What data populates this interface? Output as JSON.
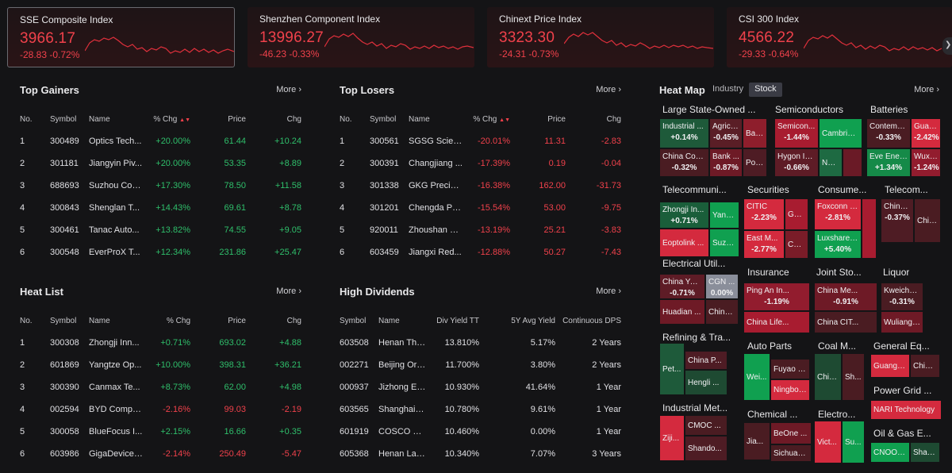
{
  "indices": [
    {
      "name": "SSE Composite Index",
      "price": "3966.17",
      "chg": "-28.83",
      "pct": "-0.72%"
    },
    {
      "name": "Shenzhen Component Index",
      "price": "13996.27",
      "chg": "-46.23",
      "pct": "-0.33%"
    },
    {
      "name": "Chinext Price Index",
      "price": "3323.30",
      "chg": "-24.31",
      "pct": "-0.73%"
    },
    {
      "name": "CSI 300 Index",
      "price": "4566.22",
      "chg": "-29.33",
      "pct": "-0.64%"
    }
  ],
  "more_label": "More",
  "gainers": {
    "title": "Top Gainers",
    "headers": [
      "No.",
      "Symbol",
      "Name",
      "% Chg",
      "Price",
      "Chg"
    ],
    "rows": [
      [
        "1",
        "300489",
        "Optics Tech...",
        "+20.00%",
        "61.44",
        "+10.24"
      ],
      [
        "2",
        "301181",
        "Jiangyin Piv...",
        "+20.00%",
        "53.35",
        "+8.89"
      ],
      [
        "3",
        "688693",
        "Suzhou Con...",
        "+17.30%",
        "78.50",
        "+11.58"
      ],
      [
        "4",
        "300843",
        "Shenglan T...",
        "+14.43%",
        "69.61",
        "+8.78"
      ],
      [
        "5",
        "300461",
        "Tanac Auto...",
        "+13.82%",
        "74.55",
        "+9.05"
      ],
      [
        "6",
        "300548",
        "EverProX T...",
        "+12.34%",
        "231.86",
        "+25.47"
      ]
    ]
  },
  "losers": {
    "title": "Top Losers",
    "headers": [
      "No.",
      "Symbol",
      "Name",
      "% Chg",
      "Price",
      "Chg"
    ],
    "rows": [
      [
        "1",
        "300561",
        "SGSG Scien...",
        "-20.01%",
        "11.31",
        "-2.83"
      ],
      [
        "2",
        "300391",
        "Changjiang ...",
        "-17.39%",
        "0.19",
        "-0.04"
      ],
      [
        "3",
        "301338",
        "GKG Precisi...",
        "-16.38%",
        "162.00",
        "-31.73"
      ],
      [
        "4",
        "301201",
        "Chengda Ph...",
        "-15.54%",
        "53.00",
        "-9.75"
      ],
      [
        "5",
        "920011",
        "Zhoushan C...",
        "-13.19%",
        "25.21",
        "-3.83"
      ],
      [
        "6",
        "603459",
        "Jiangxi Red...",
        "-12.88%",
        "50.27",
        "-7.43"
      ]
    ]
  },
  "heatlist": {
    "title": "Heat List",
    "headers": [
      "No.",
      "Symbol",
      "Name",
      "% Chg",
      "Price",
      "Chg"
    ],
    "rows": [
      [
        "1",
        "300308",
        "Zhongji Inn...",
        "+0.71%",
        "693.02",
        "+4.88"
      ],
      [
        "2",
        "601869",
        "Yangtze Op...",
        "+10.00%",
        "398.31",
        "+36.21"
      ],
      [
        "3",
        "300390",
        "Canmax Te...",
        "+8.73%",
        "62.00",
        "+4.98"
      ],
      [
        "4",
        "002594",
        "BYD Compa...",
        "-2.16%",
        "99.03",
        "-2.19"
      ],
      [
        "5",
        "300058",
        "BlueFocus I...",
        "+2.15%",
        "16.66",
        "+0.35"
      ],
      [
        "6",
        "603986",
        "GigaDevice ...",
        "-2.14%",
        "250.49",
        "-5.47"
      ]
    ]
  },
  "dividends": {
    "title": "High Dividends",
    "headers": [
      "Symbol",
      "Name",
      "Div Yield TT",
      "5Y Avg Yield",
      "Continuous DPS"
    ],
    "rows": [
      [
        "603508",
        "Henan Thin...",
        "13.810%",
        "5.17%",
        "2 Years"
      ],
      [
        "002271",
        "Beijing Orie...",
        "11.700%",
        "3.80%",
        "2 Years"
      ],
      [
        "000937",
        "Jizhong En...",
        "10.930%",
        "41.64%",
        "1 Year"
      ],
      [
        "603565",
        "Shanghai Z...",
        "10.780%",
        "9.61%",
        "1 Year"
      ],
      [
        "601919",
        "COSCO Shi...",
        "10.460%",
        "0.00%",
        "1 Year"
      ],
      [
        "605368",
        "Henan Lant...",
        "10.340%",
        "7.07%",
        "3 Years"
      ]
    ]
  },
  "heatmap": {
    "title": "Heat Map",
    "tabs": [
      "Industry",
      "Stock"
    ],
    "groups": [
      "Large State-Owned ...",
      "Semiconductors",
      "Batteries",
      "Telecommuni...",
      "Securities",
      "Consume...",
      "Telecom...",
      "Electrical Util...",
      "Insurance",
      "Joint Sto...",
      "Liquor",
      "Refining & Tra...",
      "Auto Parts",
      "Coal M...",
      "General Eq...",
      "Power Grid ...",
      "Industrial Met...",
      "Chemical ...",
      "Electro...",
      "Oil & Gas E..."
    ],
    "cells": [
      {
        "n": "Industrial ...",
        "v": "+0.14%",
        "c": "#1e5a3a"
      },
      {
        "n": "Agricu...",
        "v": "-0.45%",
        "c": "#5a1e26"
      },
      {
        "n": "Ban...",
        "v": "",
        "c": "#8e1e2c"
      },
      {
        "n": "China Con...",
        "v": "-0.32%",
        "c": "#4a1c22"
      },
      {
        "n": "Bank ...",
        "v": "-0.87%",
        "c": "#6e1a26"
      },
      {
        "n": "Pos...",
        "v": "",
        "c": "#4e1c24"
      },
      {
        "n": "Semicon...",
        "v": "-1.44%",
        "c": "#a81c30"
      },
      {
        "n": "Cambricon",
        "v": "",
        "c": "#10a050"
      },
      {
        "n": "Hygon Inf...",
        "v": "-0.66%",
        "c": "#5e1c26"
      },
      {
        "n": "NA...",
        "v": "",
        "c": "#1e6a42"
      },
      {
        "n": "",
        "v": "",
        "c": "#6a1a26"
      },
      {
        "n": "Contemp...",
        "v": "-0.33%",
        "c": "#4a1c22"
      },
      {
        "n": "Guan...",
        "v": "-2.42%",
        "c": "#d42a3e"
      },
      {
        "n": "Eve Ener...",
        "v": "+1.34%",
        "c": "#158a48"
      },
      {
        "n": "Wuxi ...",
        "v": "-1.24%",
        "c": "#921c2e"
      },
      {
        "n": "Zhongji In...",
        "v": "+0.71%",
        "c": "#1a5e3a"
      },
      {
        "n": "Yangt...",
        "v": "",
        "c": "#10a050"
      },
      {
        "n": "Eoptolink ...",
        "v": "",
        "c": "#d42a3e"
      },
      {
        "n": "Suzho...",
        "v": "",
        "c": "#10a050"
      },
      {
        "n": "CITIC",
        "v": "-2.23%",
        "c": "#d42a3e"
      },
      {
        "n": "Guo...",
        "v": "",
        "c": "#a81c30"
      },
      {
        "n": "East M...",
        "v": "-2.77%",
        "c": "#d42a3e"
      },
      {
        "n": "Chin...",
        "v": "",
        "c": "#7a1c28"
      },
      {
        "n": "Foxconn I...",
        "v": "-2.81%",
        "c": "#d42a3e"
      },
      {
        "n": "",
        "v": "",
        "c": "#a81c30"
      },
      {
        "n": "Luxshare ...",
        "v": "+5.40%",
        "c": "#10a050"
      },
      {
        "n": "China ...",
        "v": "-0.37%",
        "c": "#4e1c24"
      },
      {
        "n": "Chin...",
        "v": "",
        "c": "#4a1c22"
      },
      {
        "n": "China Yan...",
        "v": "-0.71%",
        "c": "#5e1c26"
      },
      {
        "n": "CGN ...",
        "v": "0.00%",
        "c": "#8a8e9a"
      },
      {
        "n": "Huadian ...",
        "v": "",
        "c": "#6e1a26"
      },
      {
        "n": "China ...",
        "v": "",
        "c": "#4a1c22"
      },
      {
        "n": "Ping An In...",
        "v": "-1.19%",
        "c": "#921c2e"
      },
      {
        "n": "China Life...",
        "v": "",
        "c": "#a81c30"
      },
      {
        "n": "China Me...",
        "v": "-0.91%",
        "c": "#6e1a26"
      },
      {
        "n": "China CIT...",
        "v": "",
        "c": "#4a1c22"
      },
      {
        "n": "Kweicho...",
        "v": "-0.31%",
        "c": "#4a1c22"
      },
      {
        "n": "Wuliangy...",
        "v": "",
        "c": "#6e1a26"
      },
      {
        "n": "Pet...",
        "v": "",
        "c": "#1e5a3a"
      },
      {
        "n": "China P...",
        "v": "",
        "c": "#4e1c24"
      },
      {
        "n": "Hengli ...",
        "v": "",
        "c": "#1e4a32"
      },
      {
        "n": "Wei...",
        "v": "",
        "c": "#10a050"
      },
      {
        "n": "Fuyao G...",
        "v": "",
        "c": "#4a1c22"
      },
      {
        "n": "Ningbo ...",
        "v": "",
        "c": "#d42a3e"
      },
      {
        "n": "Chin...",
        "v": "",
        "c": "#1e4a32"
      },
      {
        "n": "Sh...",
        "v": "",
        "c": "#4a1c22"
      },
      {
        "n": "Guangd...",
        "v": "",
        "c": "#d42a3e"
      },
      {
        "n": "China...",
        "v": "",
        "c": "#4a1c22"
      },
      {
        "n": "NARI Technology",
        "v": "",
        "c": "#d42a3e"
      },
      {
        "n": "Ziji...",
        "v": "",
        "c": "#d42a3e"
      },
      {
        "n": "CMOC ...",
        "v": "",
        "c": "#4a1c22"
      },
      {
        "n": "Shando...",
        "v": "",
        "c": "#4e1c24"
      },
      {
        "n": "BeOne ...",
        "v": "",
        "c": "#6e1a26"
      },
      {
        "n": "Jia...",
        "v": "",
        "c": "#4a1c22"
      },
      {
        "n": "Sichuan...",
        "v": "",
        "c": "#4a1c22"
      },
      {
        "n": "Vict...",
        "v": "",
        "c": "#d42a3e"
      },
      {
        "n": "Su...",
        "v": "",
        "c": "#10a050"
      },
      {
        "n": "CNOOC...",
        "v": "",
        "c": "#10a050"
      },
      {
        "n": "Shan...",
        "v": "",
        "c": "#1e4a32"
      }
    ]
  }
}
